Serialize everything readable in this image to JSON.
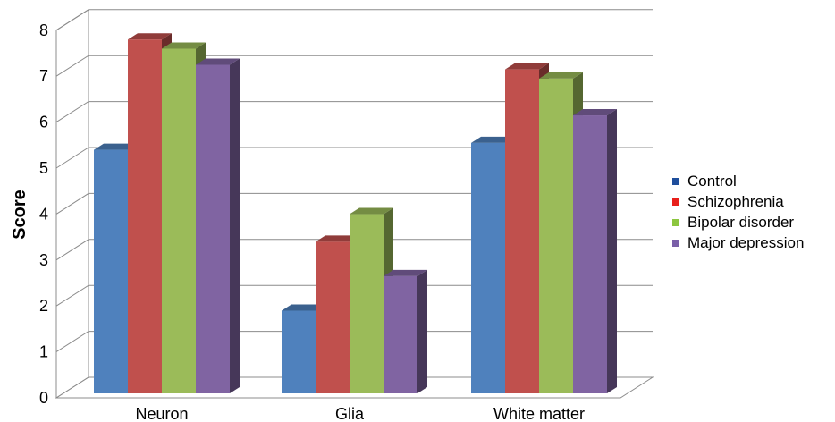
{
  "chart_data": {
    "type": "bar",
    "title": "",
    "xlabel": "",
    "ylabel": "Score",
    "ylim": [
      0,
      8
    ],
    "yticks": [
      0,
      1,
      2,
      3,
      4,
      5,
      6,
      7,
      8
    ],
    "categories": [
      "Neuron",
      "Glia",
      "White matter"
    ],
    "series": [
      {
        "name": "Control",
        "values": [
          5.3,
          1.8,
          5.45
        ],
        "color": "#4f81bd",
        "legend_color": "#1f4e9c"
      },
      {
        "name": "Schizophrenia",
        "values": [
          7.7,
          3.3,
          7.05
        ],
        "color": "#c0504d",
        "legend_color": "#e8201b"
      },
      {
        "name": "Bipolar disorder",
        "values": [
          7.5,
          3.9,
          6.85
        ],
        "color": "#9bbb59",
        "legend_color": "#8cc63f"
      },
      {
        "name": "Major depression",
        "values": [
          7.15,
          2.55,
          6.05
        ],
        "color": "#8064a2",
        "legend_color": "#7a5fa8"
      }
    ],
    "grid": true,
    "legend_position": "right",
    "style": "3d-column"
  }
}
